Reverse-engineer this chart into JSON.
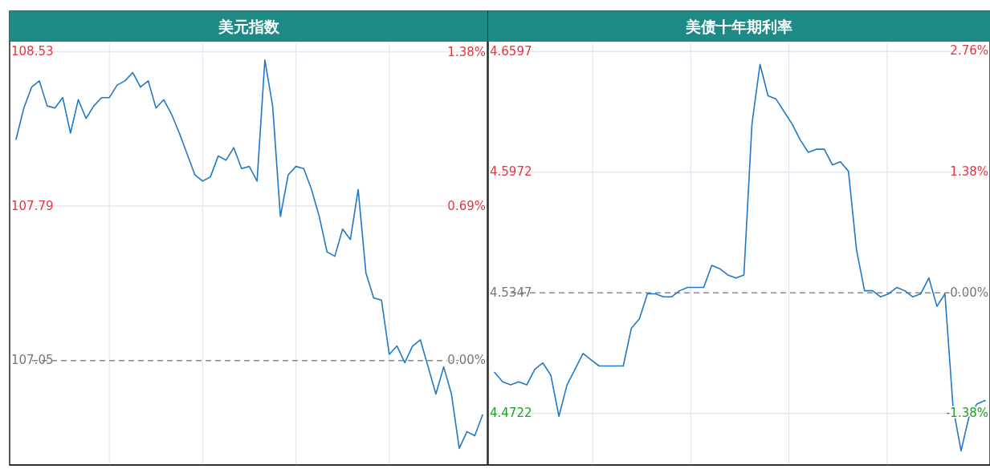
{
  "chart_data": [
    {
      "type": "line",
      "title": "美元指数",
      "grid": true,
      "categories": [
        null,
        null,
        null,
        null,
        null,
        null,
        null,
        null,
        null,
        null,
        null,
        null,
        null,
        null,
        null,
        null,
        null,
        null,
        null,
        null,
        null,
        null,
        null,
        null,
        null,
        null,
        null,
        null,
        null,
        null,
        null,
        null,
        null,
        null,
        null,
        null,
        null,
        null,
        null,
        null,
        null,
        null,
        null,
        null,
        null,
        null,
        null,
        null,
        null,
        null,
        null,
        null,
        null,
        null,
        null,
        null,
        null,
        null,
        null,
        null,
        null
      ],
      "series": [
        {
          "color": "#1f78c8",
          "values": [
            108.11,
            108.26,
            108.36,
            108.39,
            108.27,
            108.26,
            108.31,
            108.14,
            108.3,
            108.21,
            108.27,
            108.31,
            108.31,
            108.37,
            108.39,
            108.43,
            108.36,
            108.39,
            108.26,
            108.3,
            108.23,
            108.14,
            108.04,
            107.94,
            107.91,
            107.93,
            108.03,
            108.01,
            108.07,
            107.97,
            107.98,
            107.91,
            108.49,
            108.27,
            107.74,
            107.94,
            107.98,
            107.97,
            107.87,
            107.74,
            107.57,
            107.55,
            107.68,
            107.63,
            107.87,
            107.47,
            107.35,
            107.34,
            107.08,
            107.12,
            107.04,
            107.12,
            107.15,
            107.02,
            106.89,
            107.02,
            106.89,
            106.63,
            106.71,
            106.69,
            106.79
          ]
        }
      ],
      "ylim": [
        106.55,
        108.57
      ],
      "yticks": [
        107.05,
        107.79,
        108.53
      ],
      "y2lim": [
        -0.47,
        1.42
      ],
      "y2ticks": [
        {
          "value": 0,
          "label": "0.00%"
        },
        {
          "value": 0.69,
          "label": "0.69%"
        },
        {
          "value": 1.38,
          "label": "1.38%"
        }
      ],
      "ref_lines": [
        {
          "axis": "y",
          "value": 107.05,
          "color": "#888888",
          "line_style": "dashed"
        }
      ]
    },
    {
      "type": "line",
      "title": "美债十年期利率",
      "grid": true,
      "categories": [
        null,
        null,
        null,
        null,
        null,
        null,
        null,
        null,
        null,
        null,
        null,
        null,
        null,
        null,
        null,
        null,
        null,
        null,
        null,
        null,
        null,
        null,
        null,
        null,
        null,
        null,
        null,
        null,
        null,
        null,
        null,
        null,
        null,
        null,
        null,
        null,
        null,
        null,
        null,
        null,
        null,
        null,
        null,
        null,
        null,
        null,
        null,
        null,
        null,
        null,
        null,
        null,
        null,
        null,
        null,
        null,
        null,
        null,
        null,
        null,
        null,
        null
      ],
      "series": [
        {
          "color": "#1f78c8",
          "values": [
            4.4935,
            4.4886,
            4.487,
            4.4886,
            4.487,
            4.4951,
            4.4984,
            4.4919,
            4.4707,
            4.487,
            4.4951,
            4.5033,
            4.5,
            4.4968,
            4.4968,
            4.4968,
            4.4968,
            4.5163,
            4.5212,
            4.5342,
            4.5342,
            4.5326,
            4.5326,
            4.5358,
            4.5375,
            4.5375,
            4.5375,
            4.5489,
            4.5472,
            4.544,
            4.5424,
            4.544,
            4.6221,
            4.6531,
            4.6368,
            4.6351,
            4.6286,
            4.6221,
            4.614,
            4.6075,
            4.6091,
            4.6091,
            4.601,
            4.6026,
            4.5977,
            4.557,
            4.5358,
            4.5358,
            4.5326,
            4.5342,
            4.5375,
            4.5358,
            4.5326,
            4.5342,
            4.5424,
            4.5277,
            4.5342,
            4.4756,
            4.4528,
            4.4707,
            4.4772,
            4.4789
          ]
        }
      ],
      "ylim": [
        4.4455,
        4.664
      ],
      "yticks": [
        4.4722,
        4.5347,
        4.5972,
        4.6597
      ],
      "y2lim": [
        -1.97,
        2.85
      ],
      "y2ticks": [
        {
          "value": -1.38,
          "label": "-1.38%"
        },
        {
          "value": 0,
          "label": "0.00%"
        },
        {
          "value": 1.38,
          "label": "1.38%"
        },
        {
          "value": 2.76,
          "label": "2.76%"
        }
      ],
      "ref_lines": [
        {
          "axis": "y",
          "value": 4.5347,
          "color": "#888888",
          "line_style": "dashed"
        }
      ]
    }
  ]
}
